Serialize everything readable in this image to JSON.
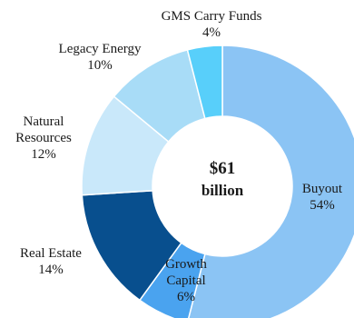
{
  "chart_data": {
    "type": "pie",
    "variant": "donut",
    "center_label": {
      "amount": "$61",
      "unit": "billion"
    },
    "slices": [
      {
        "name": "Buyout",
        "value": 54,
        "label": "54%",
        "color": "#8bc4f4"
      },
      {
        "name": "Growth Capital",
        "name_lines": [
          "Growth",
          "Capital"
        ],
        "value": 6,
        "label": "6%",
        "color": "#4aa3ef"
      },
      {
        "name": "Real Estate",
        "value": 14,
        "label": "14%",
        "color": "#084f8e"
      },
      {
        "name": "Natural Resources",
        "name_lines": [
          "Natural",
          "Resources"
        ],
        "value": 12,
        "label": "12%",
        "color": "#c9e8fa"
      },
      {
        "name": "Legacy Energy",
        "value": 10,
        "label": "10%",
        "color": "#a8dcf7"
      },
      {
        "name": "GMS Carry Funds",
        "value": 4,
        "label": "4%",
        "color": "#58cffa"
      }
    ],
    "start_angle_deg": 0,
    "direction": "clockwise"
  }
}
